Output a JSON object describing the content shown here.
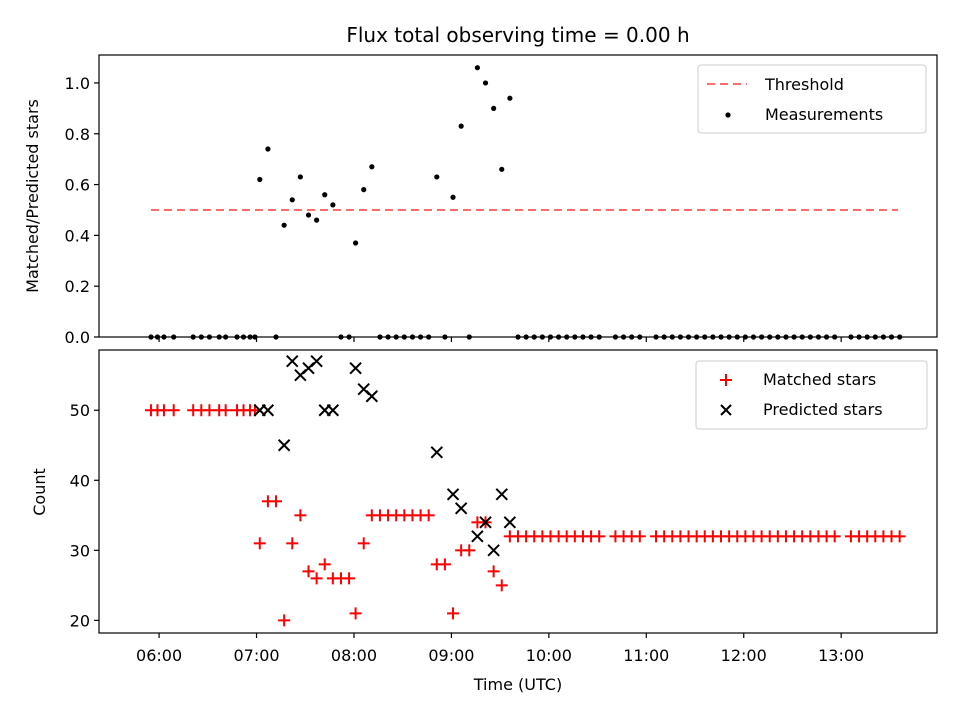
{
  "chart_data": [
    {
      "type": "scatter",
      "title": "Flux total observing time = 0.00 h",
      "xlabel": "",
      "ylabel": "Matched/Predicted stars",
      "ylim": [
        0,
        1.11
      ],
      "yticks": [
        "0.0",
        "0.2",
        "0.4",
        "0.6",
        "0.8",
        "1.0"
      ],
      "grid": false,
      "legend": "top-right",
      "threshold": {
        "name": "Threshold",
        "value": 0.5,
        "x_range": [
          "05:55",
          "13:35"
        ],
        "color": "#ff6b6b"
      },
      "series": [
        {
          "name": "Measurements",
          "color": "#000000",
          "points": [
            [
              "05:55",
              0
            ],
            [
              "05:59",
              0
            ],
            [
              "06:03",
              0
            ],
            [
              "06:09",
              0
            ],
            [
              "06:21",
              0
            ],
            [
              "06:26",
              0
            ],
            [
              "06:31",
              0
            ],
            [
              "06:37",
              0
            ],
            [
              "06:41",
              0
            ],
            [
              "06:48",
              0
            ],
            [
              "06:52",
              0
            ],
            [
              "06:56",
              0
            ],
            [
              "06:59",
              0
            ],
            [
              "07:02",
              0.62
            ],
            [
              "07:07",
              0.74
            ],
            [
              "07:12",
              0
            ],
            [
              "07:17",
              0.44
            ],
            [
              "07:22",
              0.54
            ],
            [
              "07:27",
              0.63
            ],
            [
              "07:32",
              0.48
            ],
            [
              "07:37",
              0.46
            ],
            [
              "07:42",
              0.56
            ],
            [
              "07:47",
              0.52
            ],
            [
              "07:52",
              0
            ],
            [
              "07:57",
              0
            ],
            [
              "08:01",
              0.37
            ],
            [
              "08:06",
              0.58
            ],
            [
              "08:11",
              0.67
            ],
            [
              "08:16",
              0
            ],
            [
              "08:21",
              0
            ],
            [
              "08:26",
              0
            ],
            [
              "08:31",
              0
            ],
            [
              "08:36",
              0
            ],
            [
              "08:41",
              0
            ],
            [
              "08:46",
              0
            ],
            [
              "08:51",
              0.63
            ],
            [
              "08:56",
              0
            ],
            [
              "09:01",
              0.55
            ],
            [
              "09:06",
              0.83
            ],
            [
              "09:11",
              0
            ],
            [
              "09:16",
              1.06
            ],
            [
              "09:21",
              1.0
            ],
            [
              "09:26",
              0.9
            ],
            [
              "09:31",
              0.66
            ],
            [
              "09:36",
              0.94
            ],
            [
              "09:41",
              0
            ],
            [
              "09:46",
              0
            ],
            [
              "09:51",
              0
            ],
            [
              "09:56",
              0
            ],
            [
              "10:01",
              0
            ],
            [
              "10:06",
              0
            ],
            [
              "10:11",
              0
            ],
            [
              "10:16",
              0
            ],
            [
              "10:21",
              0
            ],
            [
              "10:26",
              0
            ],
            [
              "10:31",
              0
            ],
            [
              "10:41",
              0
            ],
            [
              "10:46",
              0
            ],
            [
              "10:51",
              0
            ],
            [
              "10:56",
              0
            ],
            [
              "11:06",
              0
            ],
            [
              "11:11",
              0
            ],
            [
              "11:16",
              0
            ],
            [
              "11:21",
              0
            ],
            [
              "11:26",
              0
            ],
            [
              "11:31",
              0
            ],
            [
              "11:36",
              0
            ],
            [
              "11:41",
              0
            ],
            [
              "11:46",
              0
            ],
            [
              "11:51",
              0
            ],
            [
              "11:56",
              0
            ],
            [
              "12:01",
              0
            ],
            [
              "12:06",
              0
            ],
            [
              "12:11",
              0
            ],
            [
              "12:16",
              0
            ],
            [
              "12:21",
              0
            ],
            [
              "12:26",
              0
            ],
            [
              "12:31",
              0
            ],
            [
              "12:36",
              0
            ],
            [
              "12:41",
              0
            ],
            [
              "12:46",
              0
            ],
            [
              "12:51",
              0
            ],
            [
              "12:56",
              0
            ],
            [
              "13:06",
              0
            ],
            [
              "13:11",
              0
            ],
            [
              "13:16",
              0
            ],
            [
              "13:21",
              0
            ],
            [
              "13:26",
              0
            ],
            [
              "13:31",
              0
            ],
            [
              "13:36",
              0
            ]
          ]
        }
      ]
    },
    {
      "type": "scatter",
      "title": "",
      "xlabel": "Time (UTC)",
      "ylabel": "Count",
      "ylim": [
        18.2,
        58.6
      ],
      "yticks": [
        "20",
        "30",
        "40",
        "50"
      ],
      "xticks": [
        "06:00",
        "07:00",
        "08:00",
        "09:00",
        "10:00",
        "11:00",
        "12:00",
        "13:00"
      ],
      "xlim": [
        "05:23",
        "13:59"
      ],
      "grid": false,
      "legend": "top-right",
      "series": [
        {
          "name": "Matched stars",
          "color": "#ff0000",
          "points": [
            [
              "05:55",
              50
            ],
            [
              "05:59",
              50
            ],
            [
              "06:03",
              50
            ],
            [
              "06:09",
              50
            ],
            [
              "06:21",
              50
            ],
            [
              "06:26",
              50
            ],
            [
              "06:31",
              50
            ],
            [
              "06:37",
              50
            ],
            [
              "06:41",
              50
            ],
            [
              "06:48",
              50
            ],
            [
              "06:52",
              50
            ],
            [
              "06:56",
              50
            ],
            [
              "06:59",
              50
            ],
            [
              "07:02",
              31
            ],
            [
              "07:07",
              37
            ],
            [
              "07:12",
              37
            ],
            [
              "07:17",
              20
            ],
            [
              "07:22",
              31
            ],
            [
              "07:27",
              35
            ],
            [
              "07:32",
              27
            ],
            [
              "07:37",
              26
            ],
            [
              "07:42",
              28
            ],
            [
              "07:47",
              26
            ],
            [
              "07:52",
              26
            ],
            [
              "07:57",
              26
            ],
            [
              "08:01",
              21
            ],
            [
              "08:06",
              31
            ],
            [
              "08:11",
              35
            ],
            [
              "08:16",
              35
            ],
            [
              "08:21",
              35
            ],
            [
              "08:26",
              35
            ],
            [
              "08:31",
              35
            ],
            [
              "08:36",
              35
            ],
            [
              "08:41",
              35
            ],
            [
              "08:46",
              35
            ],
            [
              "08:51",
              28
            ],
            [
              "08:56",
              28
            ],
            [
              "09:01",
              21
            ],
            [
              "09:06",
              30
            ],
            [
              "09:11",
              30
            ],
            [
              "09:16",
              34
            ],
            [
              "09:21",
              34
            ],
            [
              "09:26",
              27
            ],
            [
              "09:31",
              25
            ],
            [
              "09:36",
              32
            ],
            [
              "09:41",
              32
            ],
            [
              "09:46",
              32
            ],
            [
              "09:51",
              32
            ],
            [
              "09:56",
              32
            ],
            [
              "10:01",
              32
            ],
            [
              "10:06",
              32
            ],
            [
              "10:11",
              32
            ],
            [
              "10:16",
              32
            ],
            [
              "10:21",
              32
            ],
            [
              "10:26",
              32
            ],
            [
              "10:31",
              32
            ],
            [
              "10:41",
              32
            ],
            [
              "10:46",
              32
            ],
            [
              "10:51",
              32
            ],
            [
              "10:56",
              32
            ],
            [
              "11:06",
              32
            ],
            [
              "11:11",
              32
            ],
            [
              "11:16",
              32
            ],
            [
              "11:21",
              32
            ],
            [
              "11:26",
              32
            ],
            [
              "11:31",
              32
            ],
            [
              "11:36",
              32
            ],
            [
              "11:41",
              32
            ],
            [
              "11:46",
              32
            ],
            [
              "11:51",
              32
            ],
            [
              "11:56",
              32
            ],
            [
              "12:01",
              32
            ],
            [
              "12:06",
              32
            ],
            [
              "12:11",
              32
            ],
            [
              "12:16",
              32
            ],
            [
              "12:21",
              32
            ],
            [
              "12:26",
              32
            ],
            [
              "12:31",
              32
            ],
            [
              "12:36",
              32
            ],
            [
              "12:41",
              32
            ],
            [
              "12:46",
              32
            ],
            [
              "12:51",
              32
            ],
            [
              "12:56",
              32
            ],
            [
              "13:06",
              32
            ],
            [
              "13:11",
              32
            ],
            [
              "13:16",
              32
            ],
            [
              "13:21",
              32
            ],
            [
              "13:26",
              32
            ],
            [
              "13:31",
              32
            ],
            [
              "13:36",
              32
            ]
          ]
        },
        {
          "name": "Predicted stars",
          "color": "#000000",
          "points": [
            [
              "07:02",
              50
            ],
            [
              "07:07",
              50
            ],
            [
              "07:17",
              45
            ],
            [
              "07:22",
              57
            ],
            [
              "07:27",
              55
            ],
            [
              "07:32",
              56
            ],
            [
              "07:37",
              57
            ],
            [
              "07:42",
              50
            ],
            [
              "07:47",
              50
            ],
            [
              "08:01",
              56
            ],
            [
              "08:06",
              53
            ],
            [
              "08:11",
              52
            ],
            [
              "08:51",
              44
            ],
            [
              "09:01",
              38
            ],
            [
              "09:06",
              36
            ],
            [
              "09:16",
              32
            ],
            [
              "09:21",
              34
            ],
            [
              "09:26",
              30
            ],
            [
              "09:31",
              38
            ],
            [
              "09:36",
              34
            ]
          ]
        }
      ]
    }
  ]
}
